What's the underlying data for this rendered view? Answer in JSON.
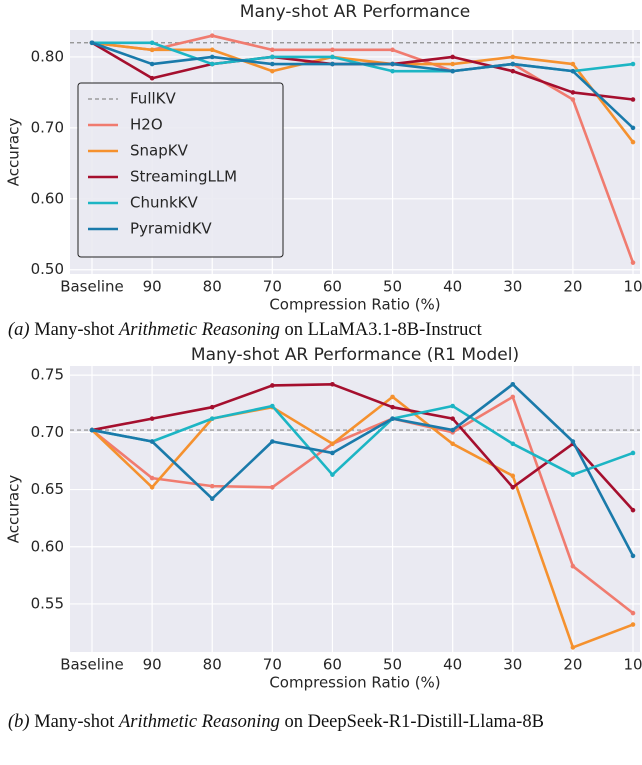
{
  "chart_data": [
    {
      "type": "line",
      "title": "Many-shot AR Performance",
      "xlabel": "Compression Ratio (%)",
      "ylabel": "Accuracy",
      "categories": [
        "Baseline",
        "90",
        "80",
        "70",
        "60",
        "50",
        "40",
        "30",
        "20",
        "10"
      ],
      "ylim": [
        0.494,
        0.838
      ],
      "yticks": [
        {
          "value": 0.5,
          "label": "0.50"
        },
        {
          "value": 0.6,
          "label": "0.60"
        },
        {
          "value": 0.7,
          "label": "0.70"
        },
        {
          "value": 0.8,
          "label": "0.80"
        }
      ],
      "grid": true,
      "legend": "center left",
      "reference_line": {
        "name": "FullKV",
        "value": 0.82,
        "color": "#8c8c8c",
        "style": "dashed"
      },
      "series": [
        {
          "name": "H2O",
          "color": "#f07b6f",
          "values": [
            0.82,
            0.81,
            0.83,
            0.81,
            0.81,
            0.81,
            0.78,
            0.79,
            0.74,
            0.51
          ]
        },
        {
          "name": "SnapKV",
          "color": "#f5912e",
          "values": [
            0.82,
            0.81,
            0.81,
            0.78,
            0.8,
            0.79,
            0.79,
            0.8,
            0.79,
            0.68
          ]
        },
        {
          "name": "StreamingLLM",
          "color": "#a50f2e",
          "values": [
            0.82,
            0.77,
            0.79,
            0.8,
            0.79,
            0.79,
            0.8,
            0.78,
            0.75,
            0.74
          ]
        },
        {
          "name": "ChunkKV",
          "color": "#1cb5c4",
          "values": [
            0.82,
            0.82,
            0.79,
            0.8,
            0.8,
            0.78,
            0.78,
            0.79,
            0.78,
            0.79
          ]
        },
        {
          "name": "PyramidKV",
          "color": "#1a7aaa",
          "values": [
            0.82,
            0.79,
            0.8,
            0.79,
            0.79,
            0.79,
            0.78,
            0.79,
            0.78,
            0.7
          ]
        }
      ],
      "caption": [
        {
          "text": "(a)",
          "italic": true
        },
        {
          "text": " Many-shot ",
          "italic": false
        },
        {
          "text": "Arithmetic Reasoning",
          "italic": true
        },
        {
          "text": " on LLaMA3.1-8B-Instruct",
          "italic": false
        }
      ]
    },
    {
      "type": "line",
      "title": "Many-shot AR Performance (R1 Model)",
      "xlabel": "Compression Ratio (%)",
      "ylabel": "Accuracy",
      "categories": [
        "Baseline",
        "90",
        "80",
        "70",
        "60",
        "50",
        "40",
        "30",
        "20",
        "10"
      ],
      "ylim": [
        0.508,
        0.758
      ],
      "yticks": [
        0.55,
        {
          "value": 0.6,
          "label": "0.60"
        },
        0.65,
        {
          "value": 0.7,
          "label": "0.70"
        },
        0.75
      ],
      "grid": true,
      "reference_line": {
        "value": 0.702,
        "color": "#8c8c8c",
        "style": "dashed"
      },
      "series": [
        {
          "name": "H2O",
          "color": "#f07b6f",
          "values": [
            0.702,
            0.66,
            0.653,
            0.652,
            0.69,
            0.712,
            0.7,
            0.731,
            0.583,
            0.542
          ]
        },
        {
          "name": "SnapKV",
          "color": "#f5912e",
          "values": [
            0.702,
            0.652,
            0.712,
            0.722,
            0.69,
            0.731,
            0.69,
            0.662,
            0.512,
            0.532
          ]
        },
        {
          "name": "StreamingLLM",
          "color": "#a50f2e",
          "values": [
            0.702,
            0.712,
            0.722,
            0.741,
            0.742,
            0.722,
            0.712,
            0.652,
            0.69,
            0.632
          ]
        },
        {
          "name": "ChunkKV",
          "color": "#1cb5c4",
          "values": [
            0.702,
            0.692,
            0.712,
            0.723,
            0.663,
            0.712,
            0.723,
            0.69,
            0.663,
            0.682
          ]
        },
        {
          "name": "PyramidKV",
          "color": "#1a7aaa",
          "values": [
            0.702,
            0.692,
            0.642,
            0.692,
            0.682,
            0.712,
            0.702,
            0.742,
            0.692,
            0.592
          ]
        }
      ],
      "caption": [
        {
          "text": "(b)",
          "italic": true
        },
        {
          "text": " Many-shot ",
          "italic": false
        },
        {
          "text": "Arithmetic Reasoning",
          "italic": true
        },
        {
          "text": " on DeepSeek-R1-Distill-Llama-8B",
          "italic": false
        }
      ]
    }
  ]
}
